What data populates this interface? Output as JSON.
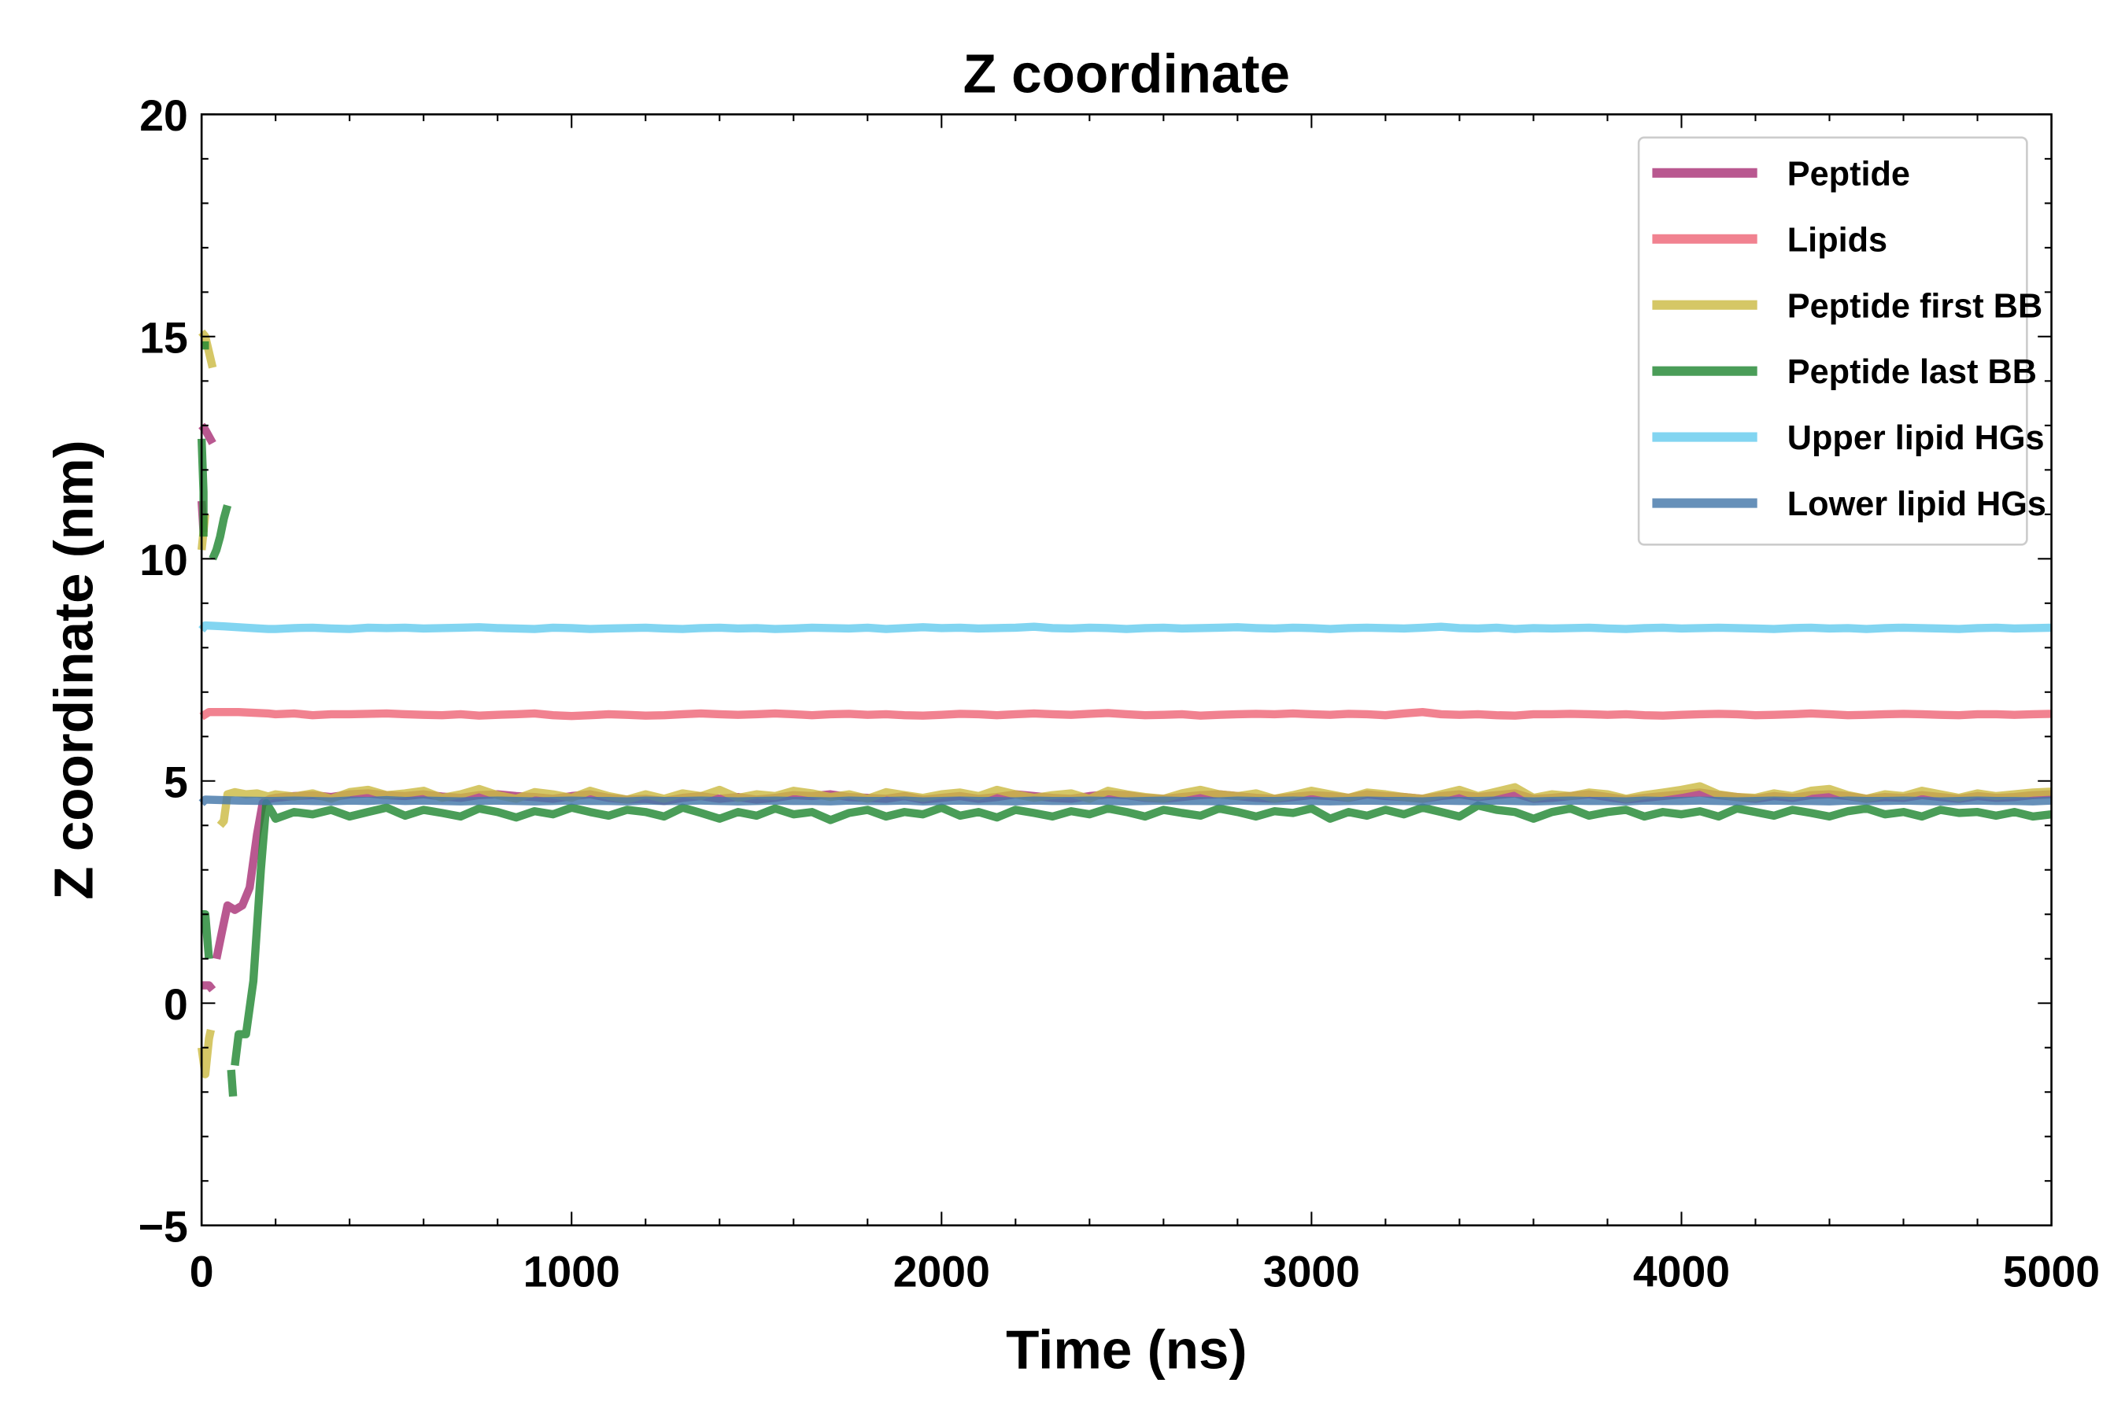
{
  "chart_data": {
    "type": "line",
    "title": "Z coordinate",
    "xlabel": "Time (ns)",
    "ylabel": "Z coordinate (nm)",
    "xlim": [
      0,
      5000
    ],
    "ylim": [
      -5,
      20
    ],
    "xticks": [
      0,
      1000,
      2000,
      3000,
      4000,
      5000
    ],
    "xtick_labels": [
      "0",
      "1000",
      "2000",
      "3000",
      "4000",
      "5000"
    ],
    "yticks": [
      -5,
      0,
      5,
      10,
      15,
      20
    ],
    "ytick_labels": [
      "−5",
      "0",
      "5",
      "10",
      "15",
      "20"
    ],
    "grid": false,
    "legend_position": "top-right",
    "series": [
      {
        "name": "Peptide",
        "color": "#aa3377",
        "segments": [
          [
            [
              0,
              13.0
            ],
            [
              10,
              12.9
            ],
            [
              30,
              12.6
            ]
          ],
          [
            [
              0,
              11.3
            ],
            [
              5,
              10.6
            ]
          ],
          [
            [
              0,
              0.4
            ],
            [
              20,
              0.4
            ],
            [
              30,
              0.3
            ]
          ],
          [
            [
              40,
              1.0
            ],
            [
              55,
              1.6
            ],
            [
              70,
              2.2
            ],
            [
              90,
              2.1
            ],
            [
              110,
              2.2
            ],
            [
              130,
              2.6
            ],
            [
              150,
              3.8
            ],
            [
              165,
              4.5
            ],
            [
              185,
              4.6
            ]
          ]
        ],
        "steady": {
          "start": 200,
          "step": 50,
          "values": [
            4.62,
            4.66,
            4.68,
            4.64,
            4.7,
            4.72,
            4.68,
            4.66,
            4.7,
            4.65,
            4.62,
            4.68,
            4.7,
            4.66,
            4.64,
            4.6,
            4.66,
            4.7,
            4.62,
            4.58,
            4.6,
            4.55,
            4.62,
            4.66,
            4.6,
            4.64,
            4.58,
            4.62,
            4.68,
            4.66,
            4.7,
            4.64,
            4.62,
            4.6,
            4.66,
            4.58,
            4.62,
            4.66,
            4.6,
            4.64,
            4.7,
            4.66,
            4.62,
            4.6,
            4.66,
            4.7,
            4.68,
            4.62,
            4.6,
            4.64,
            4.68,
            4.7,
            4.66,
            4.62,
            4.6,
            4.64,
            4.68,
            4.66,
            4.62,
            4.7,
            4.66,
            4.64,
            4.6,
            4.66,
            4.7,
            4.64,
            4.68,
            4.72,
            4.6,
            4.62,
            4.66,
            4.7,
            4.64,
            4.58,
            4.62,
            4.66,
            4.7,
            4.74,
            4.68,
            4.64,
            4.6,
            4.66,
            4.62,
            4.68,
            4.7,
            4.66,
            4.6,
            4.64,
            4.62,
            4.68,
            4.64,
            4.6,
            4.66,
            4.62,
            4.64,
            4.68,
            4.7
          ]
        }
      },
      {
        "name": "Lipids",
        "color": "#ee6677",
        "segments": [
          [
            [
              0,
              6.45
            ],
            [
              20,
              6.55
            ],
            [
              100,
              6.55
            ],
            [
              180,
              6.52
            ]
          ]
        ],
        "steady": {
          "start": 200,
          "step": 50,
          "values": [
            6.5,
            6.52,
            6.48,
            6.5,
            6.5,
            6.51,
            6.52,
            6.5,
            6.49,
            6.48,
            6.5,
            6.47,
            6.49,
            6.5,
            6.52,
            6.48,
            6.46,
            6.48,
            6.5,
            6.49,
            6.47,
            6.48,
            6.5,
            6.52,
            6.5,
            6.49,
            6.5,
            6.52,
            6.5,
            6.48,
            6.5,
            6.51,
            6.49,
            6.5,
            6.48,
            6.47,
            6.49,
            6.51,
            6.5,
            6.48,
            6.5,
            6.52,
            6.5,
            6.49,
            6.51,
            6.53,
            6.5,
            6.48,
            6.49,
            6.5,
            6.47,
            6.49,
            6.5,
            6.51,
            6.5,
            6.52,
            6.5,
            6.49,
            6.51,
            6.5,
            6.48,
            6.52,
            6.55,
            6.5,
            6.49,
            6.5,
            6.48,
            6.47,
            6.5,
            6.5,
            6.51,
            6.5,
            6.49,
            6.5,
            6.48,
            6.47,
            6.49,
            6.5,
            6.51,
            6.5,
            6.48,
            6.49,
            6.5,
            6.52,
            6.5,
            6.48,
            6.49,
            6.5,
            6.51,
            6.5,
            6.49,
            6.48,
            6.5,
            6.5,
            6.49,
            6.5,
            6.51
          ]
        }
      },
      {
        "name": "Peptide first BB",
        "color": "#ccbb44",
        "segments": [
          [
            [
              0,
              15.1
            ],
            [
              10,
              15.0
            ],
            [
              30,
              14.3
            ]
          ],
          [
            [
              0,
              10.2
            ],
            [
              10,
              11.0
            ]
          ],
          [
            [
              0,
              -1.0
            ],
            [
              10,
              -1.6
            ],
            [
              20,
              -0.8
            ],
            [
              25,
              -0.6
            ]
          ],
          [
            [
              50,
              4.0
            ],
            [
              60,
              4.1
            ],
            [
              70,
              4.7
            ],
            [
              90,
              4.75
            ],
            [
              120,
              4.7
            ],
            [
              150,
              4.72
            ],
            [
              180,
              4.65
            ]
          ]
        ],
        "steady": {
          "start": 200,
          "step": 50,
          "values": [
            4.7,
            4.65,
            4.72,
            4.6,
            4.75,
            4.8,
            4.68,
            4.72,
            4.78,
            4.62,
            4.7,
            4.82,
            4.68,
            4.6,
            4.75,
            4.7,
            4.62,
            4.78,
            4.66,
            4.58,
            4.7,
            4.6,
            4.72,
            4.66,
            4.8,
            4.62,
            4.7,
            4.66,
            4.78,
            4.72,
            4.64,
            4.7,
            4.6,
            4.75,
            4.68,
            4.62,
            4.7,
            4.74,
            4.66,
            4.8,
            4.7,
            4.62,
            4.68,
            4.72,
            4.6,
            4.78,
            4.7,
            4.64,
            4.6,
            4.72,
            4.8,
            4.7,
            4.66,
            4.72,
            4.6,
            4.68,
            4.78,
            4.7,
            4.62,
            4.74,
            4.7,
            4.64,
            4.6,
            4.7,
            4.8,
            4.66,
            4.76,
            4.86,
            4.62,
            4.7,
            4.66,
            4.74,
            4.7,
            4.6,
            4.68,
            4.74,
            4.8,
            4.88,
            4.7,
            4.64,
            4.62,
            4.72,
            4.66,
            4.78,
            4.82,
            4.68,
            4.6,
            4.7,
            4.66,
            4.78,
            4.7,
            4.62,
            4.72,
            4.66,
            4.7,
            4.74,
            4.76
          ]
        }
      },
      {
        "name": "Peptide last BB",
        "color": "#228833",
        "segments": [
          [
            [
              0,
              14.8
            ],
            [
              20,
              14.8
            ]
          ],
          [
            [
              0,
              12.7
            ],
            [
              5,
              11.5
            ],
            [
              5,
              10.5
            ]
          ],
          [
            [
              30,
              10.0
            ],
            [
              40,
              10.2
            ],
            [
              50,
              10.5
            ],
            [
              60,
              10.9
            ],
            [
              70,
              11.2
            ]
          ],
          [
            [
              0,
              2.0
            ],
            [
              10,
              2.0
            ],
            [
              20,
              1.0
            ]
          ],
          [
            [
              80,
              -1.5
            ],
            [
              85,
              -2.1
            ]
          ],
          [
            [
              90,
              -1.4
            ],
            [
              100,
              -0.7
            ],
            [
              120,
              -0.7
            ],
            [
              140,
              0.5
            ],
            [
              160,
              3.0
            ],
            [
              175,
              4.5
            ],
            [
              190,
              4.3
            ]
          ]
        ],
        "steady": {
          "start": 200,
          "step": 50,
          "values": [
            4.15,
            4.3,
            4.25,
            4.35,
            4.2,
            4.3,
            4.4,
            4.22,
            4.35,
            4.28,
            4.2,
            4.38,
            4.3,
            4.18,
            4.32,
            4.25,
            4.4,
            4.3,
            4.22,
            4.35,
            4.3,
            4.2,
            4.4,
            4.28,
            4.15,
            4.3,
            4.22,
            4.38,
            4.25,
            4.3,
            4.12,
            4.28,
            4.35,
            4.2,
            4.3,
            4.25,
            4.4,
            4.22,
            4.3,
            4.18,
            4.35,
            4.28,
            4.2,
            4.32,
            4.25,
            4.38,
            4.3,
            4.2,
            4.35,
            4.28,
            4.22,
            4.38,
            4.3,
            4.2,
            4.32,
            4.28,
            4.38,
            4.15,
            4.3,
            4.22,
            4.35,
            4.25,
            4.4,
            4.3,
            4.2,
            4.45,
            4.35,
            4.3,
            4.15,
            4.3,
            4.38,
            4.22,
            4.3,
            4.35,
            4.2,
            4.3,
            4.25,
            4.32,
            4.2,
            4.38,
            4.3,
            4.22,
            4.35,
            4.28,
            4.2,
            4.32,
            4.38,
            4.25,
            4.3,
            4.2,
            4.35,
            4.28,
            4.3,
            4.22,
            4.3,
            4.2,
            4.25
          ]
        }
      },
      {
        "name": "Upper lipid HGs",
        "color": "#66ccee",
        "segments": [
          [
            [
              0,
              8.4
            ],
            [
              10,
              8.5
            ],
            [
              60,
              8.48
            ],
            [
              120,
              8.45
            ],
            [
              180,
              8.42
            ]
          ]
        ],
        "steady": {
          "start": 200,
          "step": 50,
          "values": [
            8.42,
            8.44,
            8.45,
            8.43,
            8.42,
            8.45,
            8.44,
            8.45,
            8.43,
            8.44,
            8.45,
            8.46,
            8.44,
            8.43,
            8.42,
            8.45,
            8.44,
            8.42,
            8.43,
            8.44,
            8.45,
            8.43,
            8.42,
            8.44,
            8.45,
            8.43,
            8.44,
            8.42,
            8.43,
            8.45,
            8.44,
            8.43,
            8.45,
            8.42,
            8.44,
            8.46,
            8.44,
            8.45,
            8.43,
            8.44,
            8.45,
            8.47,
            8.44,
            8.43,
            8.45,
            8.44,
            8.42,
            8.44,
            8.45,
            8.43,
            8.44,
            8.45,
            8.46,
            8.44,
            8.43,
            8.45,
            8.44,
            8.42,
            8.44,
            8.45,
            8.44,
            8.43,
            8.45,
            8.47,
            8.44,
            8.43,
            8.45,
            8.42,
            8.44,
            8.43,
            8.44,
            8.45,
            8.43,
            8.42,
            8.44,
            8.45,
            8.43,
            8.44,
            8.45,
            8.44,
            8.43,
            8.42,
            8.44,
            8.45,
            8.43,
            8.44,
            8.42,
            8.44,
            8.45,
            8.44,
            8.43,
            8.42,
            8.44,
            8.45,
            8.43,
            8.44,
            8.45
          ]
        }
      },
      {
        "name": "Lower lipid HGs",
        "color": "#4477aa",
        "segments": [
          [
            [
              0,
              4.5
            ],
            [
              10,
              4.58
            ],
            [
              100,
              4.56
            ],
            [
              180,
              4.55
            ]
          ]
        ],
        "steady": {
          "start": 200,
          "step": 50,
          "values": [
            4.55,
            4.56,
            4.55,
            4.54,
            4.56,
            4.55,
            4.57,
            4.55,
            4.56,
            4.55,
            4.54,
            4.55,
            4.56,
            4.55,
            4.54,
            4.55,
            4.56,
            4.55,
            4.55,
            4.54,
            4.56,
            4.55,
            4.55,
            4.56,
            4.55,
            4.54,
            4.55,
            4.56,
            4.55,
            4.55,
            4.54,
            4.56,
            4.55,
            4.55,
            4.56,
            4.54,
            4.55,
            4.56,
            4.55,
            4.55,
            4.54,
            4.56,
            4.55,
            4.55,
            4.56,
            4.55,
            4.54,
            4.55,
            4.56,
            4.55,
            4.55,
            4.54,
            4.56,
            4.55,
            4.55,
            4.56,
            4.55,
            4.54,
            4.55,
            4.56,
            4.55,
            4.55,
            4.54,
            4.56,
            4.55,
            4.55,
            4.56,
            4.55,
            4.54,
            4.55,
            4.56,
            4.55,
            4.55,
            4.54,
            4.56,
            4.55,
            4.55,
            4.56,
            4.55,
            4.54,
            4.55,
            4.56,
            4.55,
            4.55,
            4.54,
            4.56,
            4.55,
            4.55,
            4.56,
            4.55,
            4.54,
            4.55,
            4.56,
            4.55,
            4.55,
            4.54,
            4.56
          ]
        }
      }
    ]
  }
}
